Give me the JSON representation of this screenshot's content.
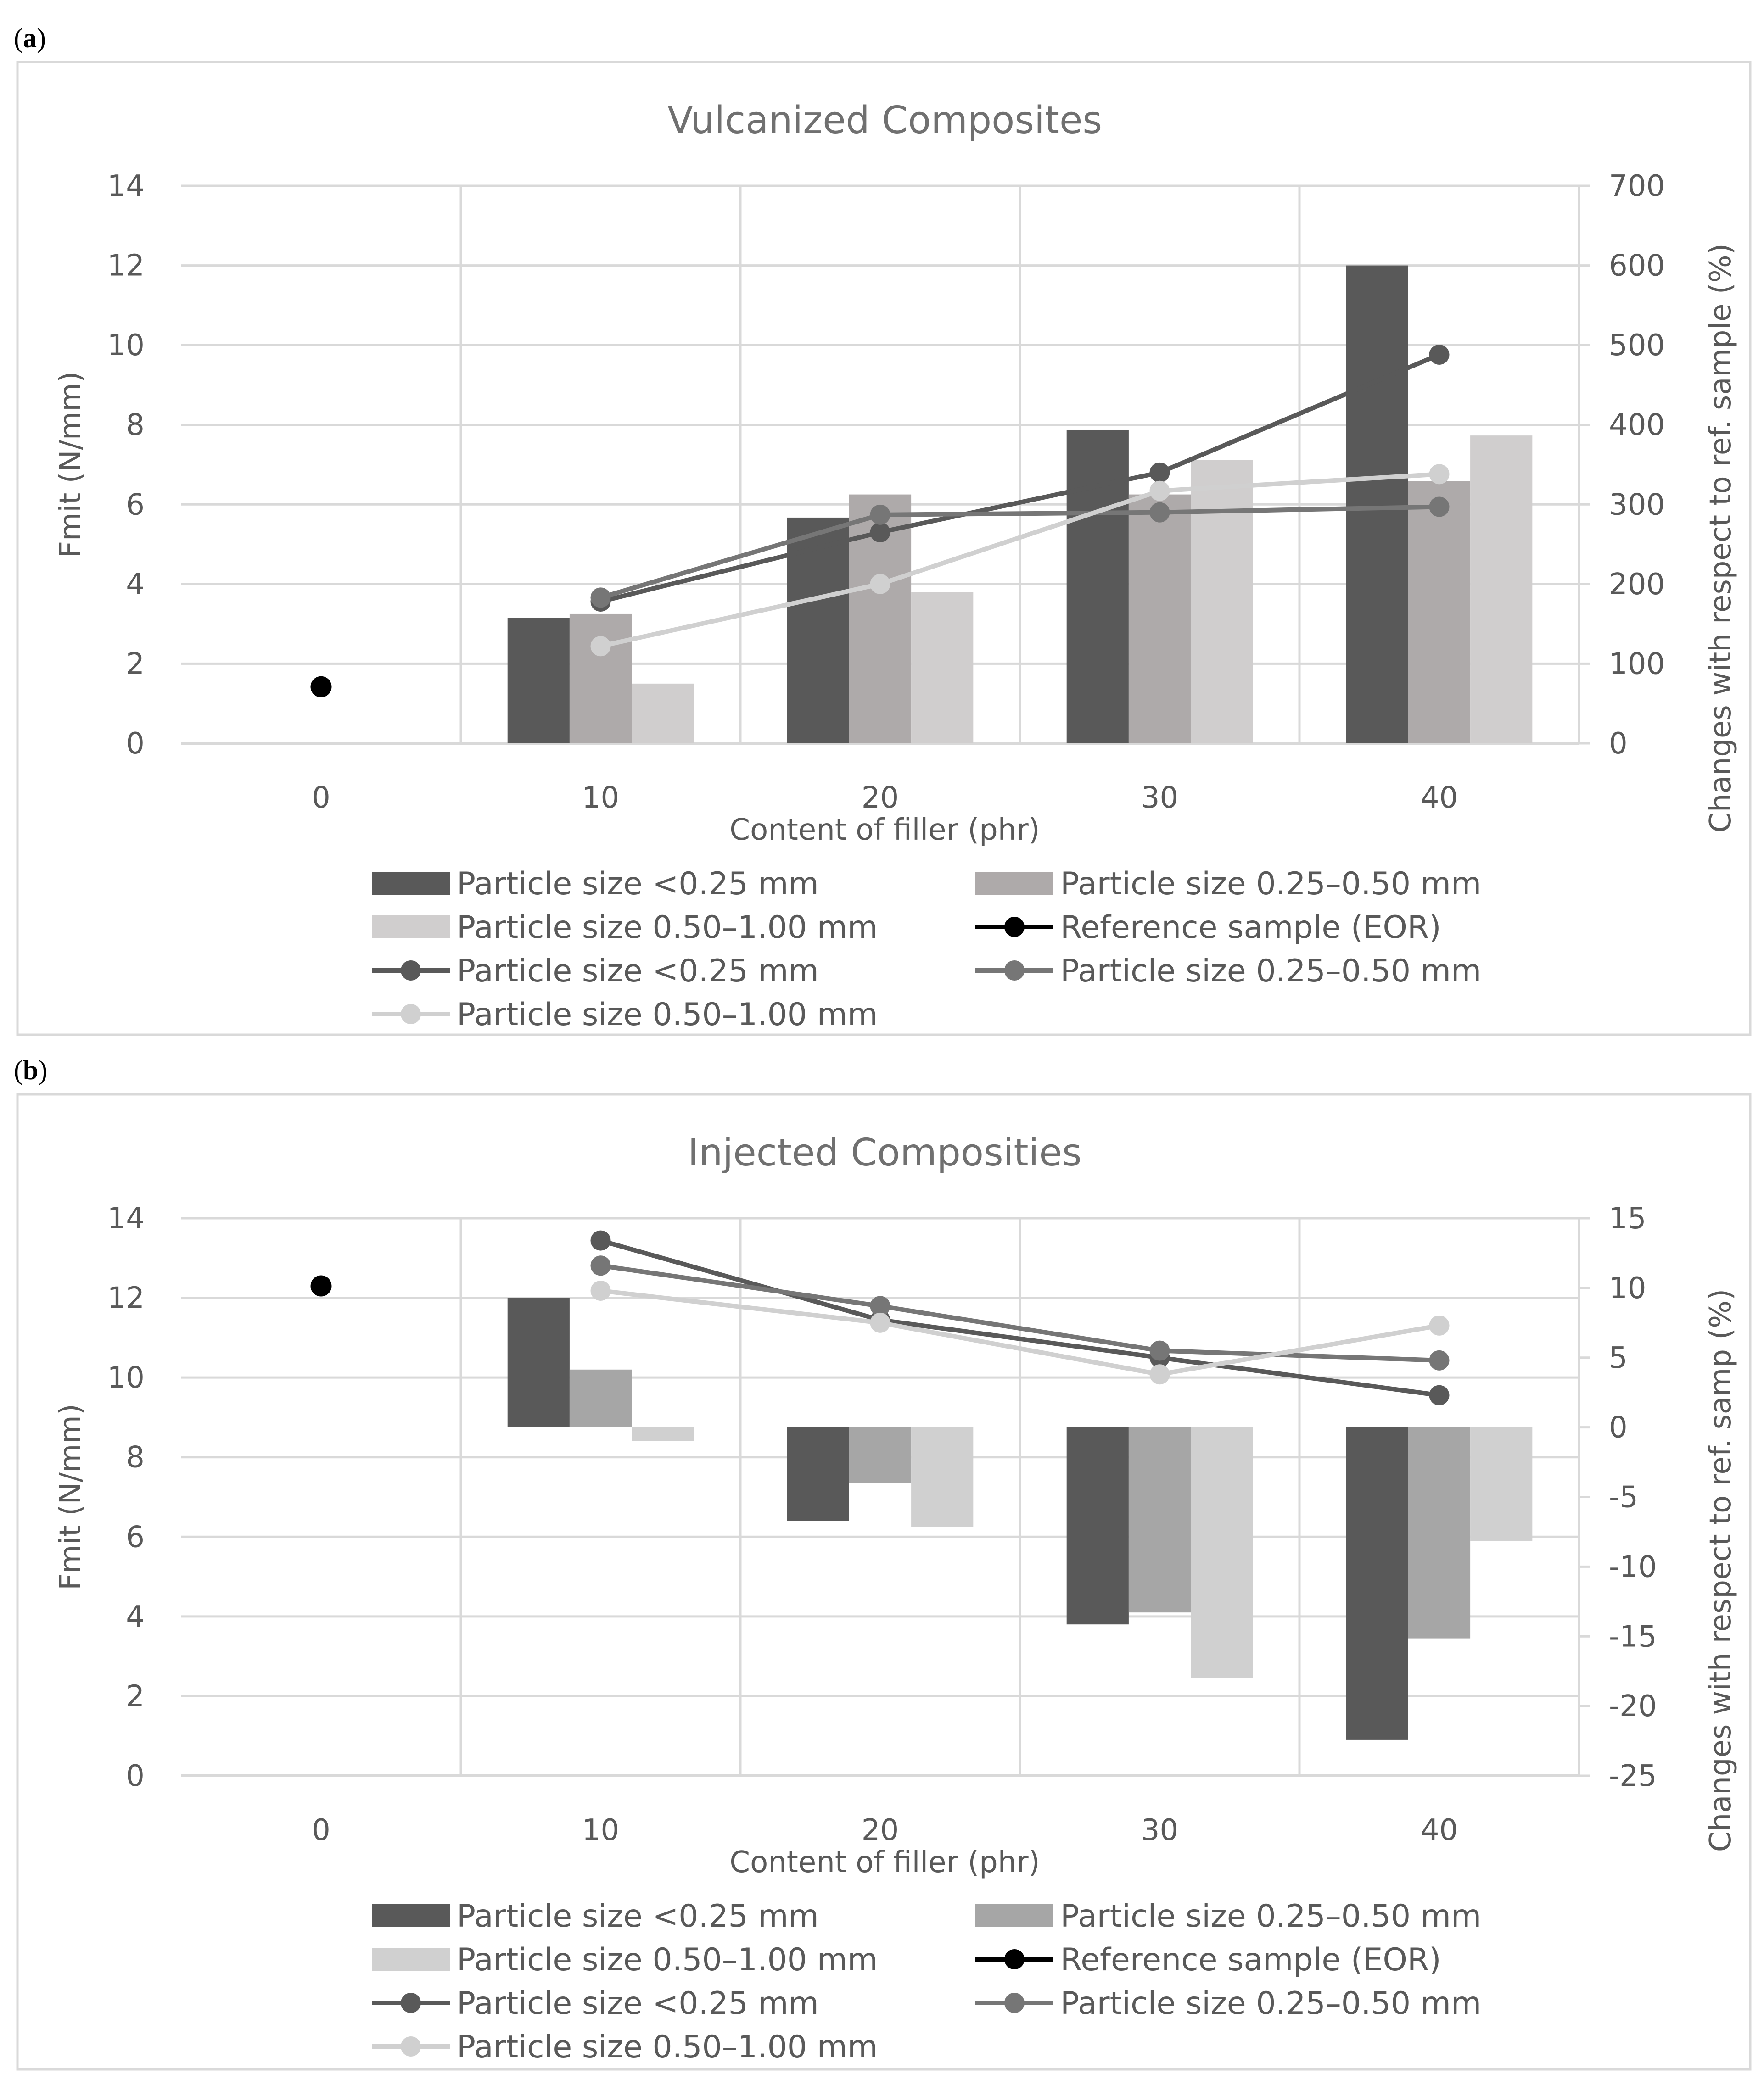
{
  "panels": [
    {
      "label_open": "(",
      "label_letter": "a",
      "label_close": ")"
    },
    {
      "label_open": "(",
      "label_letter": "b",
      "label_close": ")"
    }
  ],
  "colors": {
    "dark": "#595959",
    "medium_a": "#aeaaaa",
    "medium_b": "#a6a6a6",
    "light": "#d0cece",
    "light_b": "#d0d0d0",
    "reference": "#000000",
    "line_dark": "#595959",
    "line_medium": "#767676",
    "line_light": "#d0d0d0",
    "grid": "#d9d9d9",
    "frame": "#d9d9d9"
  },
  "chart_data": [
    {
      "type": "bar",
      "title": "Vulcanized Composites",
      "xlabel": "Content of filler (phr)",
      "ylabel": "Fmit (N/mm)",
      "y2label": "Changes with respect to ref. sample (%)",
      "categories": [
        "0",
        "10",
        "20",
        "30",
        "40"
      ],
      "ylim": [
        0,
        14
      ],
      "yticks": [
        "0",
        "2",
        "4",
        "6",
        "8",
        "10",
        "12",
        "14"
      ],
      "y2lim": [
        0,
        700
      ],
      "y2ticks": [
        "0",
        "100",
        "200",
        "300",
        "400",
        "500",
        "600",
        "700"
      ],
      "bar_baseline": 0,
      "series": [
        {
          "name": "Particle size <0.25 mm",
          "kind": "bar",
          "axis": "primary",
          "color_key": "dark",
          "values": [
            null,
            3.15,
            5.67,
            7.87,
            12.0
          ]
        },
        {
          "name": "Particle size 0.25–0.50 mm",
          "kind": "bar",
          "axis": "primary",
          "color_key": "medium_a",
          "values": [
            null,
            3.25,
            6.25,
            6.25,
            6.58
          ]
        },
        {
          "name": "Particle size 0.50–1.00 mm",
          "kind": "bar",
          "axis": "primary",
          "color_key": "light",
          "values": [
            null,
            1.5,
            3.8,
            7.12,
            7.73
          ]
        },
        {
          "name": "Reference sample (EOR)",
          "kind": "marker",
          "axis": "primary",
          "color_key": "reference",
          "values": [
            1.42,
            null,
            null,
            null,
            null
          ]
        },
        {
          "name": "Particle size <0.25 mm",
          "kind": "line",
          "axis": "secondary",
          "color_key": "line_dark",
          "values": [
            null,
            178,
            265,
            340,
            488
          ]
        },
        {
          "name": "Particle size 0.25–0.50 mm",
          "kind": "line",
          "axis": "secondary",
          "color_key": "line_medium",
          "values": [
            null,
            183,
            287,
            290,
            297
          ]
        },
        {
          "name": "Particle size 0.50–1.00 mm",
          "kind": "line",
          "axis": "secondary",
          "color_key": "line_light",
          "values": [
            null,
            122,
            200,
            317,
            338
          ]
        }
      ]
    },
    {
      "type": "bar",
      "title": "Injected Composities",
      "xlabel": "Content of filler (phr)",
      "ylabel": "Fmit (N/mm)",
      "y2label": "Changes with respect to ref. samp (%)",
      "categories": [
        "0",
        "10",
        "20",
        "30",
        "40"
      ],
      "ylim": [
        0,
        14
      ],
      "yticks": [
        "0",
        "2",
        "4",
        "6",
        "8",
        "10",
        "12",
        "14"
      ],
      "y2lim": [
        -25,
        15
      ],
      "y2ticks": [
        "-25",
        "-20",
        "-15",
        "-10",
        "-5",
        "0",
        "5",
        "10",
        "15"
      ],
      "bar_baseline": 8.75,
      "series": [
        {
          "name": "Particle size <0.25 mm",
          "kind": "bar",
          "axis": "primary",
          "color_key": "dark",
          "values": [
            null,
            12.0,
            6.4,
            3.8,
            0.9
          ]
        },
        {
          "name": "Particle size 0.25–0.50 mm",
          "kind": "bar",
          "axis": "primary",
          "color_key": "medium_b",
          "values": [
            null,
            10.2,
            7.35,
            4.1,
            3.45
          ]
        },
        {
          "name": "Particle size 0.50–1.00 mm",
          "kind": "bar",
          "axis": "primary",
          "color_key": "light_b",
          "values": [
            null,
            8.4,
            6.25,
            2.45,
            5.9
          ]
        },
        {
          "name": "Reference sample (EOR)",
          "kind": "marker",
          "axis": "primary",
          "color_key": "reference",
          "values": [
            12.3,
            null,
            null,
            null,
            null
          ]
        },
        {
          "name": "Particle size <0.25 mm",
          "kind": "line",
          "axis": "secondary",
          "color_key": "line_dark",
          "values": [
            null,
            13.4,
            7.7,
            5.0,
            2.3
          ]
        },
        {
          "name": "Particle size 0.25–0.50 mm",
          "kind": "line",
          "axis": "secondary",
          "color_key": "line_medium",
          "values": [
            null,
            11.6,
            8.7,
            5.5,
            4.8
          ]
        },
        {
          "name": "Particle size 0.50–1.00 mm",
          "kind": "line",
          "axis": "secondary",
          "color_key": "line_light",
          "values": [
            null,
            9.8,
            7.5,
            3.8,
            7.3
          ]
        }
      ]
    }
  ]
}
